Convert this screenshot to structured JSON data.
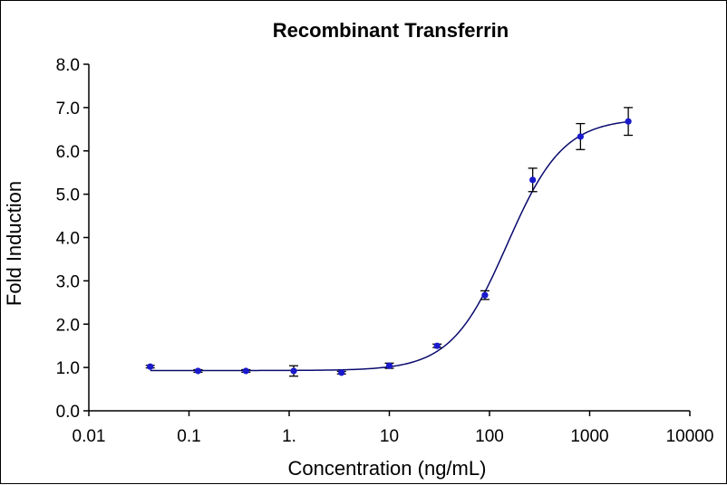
{
  "chart_data": {
    "type": "scatter",
    "title": "Recombinant Transferrin",
    "xlabel": "Concentration (ng/mL)",
    "ylabel": "Fold Induction",
    "x_scale": "log",
    "xlim": [
      0.01,
      10000
    ],
    "ylim": [
      0,
      8
    ],
    "x_ticks": [
      0.01,
      0.1,
      1,
      10,
      100,
      1000,
      10000
    ],
    "x_tick_labels": [
      "0.01",
      "0.1",
      "1.",
      "10",
      "100",
      "1000",
      "10000"
    ],
    "y_ticks": [
      0,
      1,
      2,
      3,
      4,
      5,
      6,
      7,
      8
    ],
    "y_tick_labels": [
      "0.0",
      "1.0",
      "2.0",
      "3.0",
      "4.0",
      "5.0",
      "6.0",
      "7.0",
      "8.0"
    ],
    "grid": false,
    "legend": "none",
    "series": [
      {
        "x": [
          0.041,
          0.123,
          0.37,
          1.11,
          3.33,
          10,
          30,
          90,
          270,
          810,
          2430
        ],
        "y": [
          1.02,
          0.92,
          0.92,
          0.92,
          0.88,
          1.04,
          1.5,
          2.67,
          5.33,
          6.33,
          6.68
        ],
        "error": [
          0.03,
          0.03,
          0.03,
          0.12,
          0.03,
          0.06,
          0.04,
          0.1,
          0.27,
          0.3,
          0.32
        ]
      }
    ],
    "fit_curve": {
      "model": "4PL",
      "bottom": 0.93,
      "top": 6.75,
      "ec50": 150,
      "hill": 1.55
    },
    "colors": {
      "points": "#1a1acc",
      "curve": "#0a0a6e",
      "errorbars": "#000000",
      "axes": "#000000"
    }
  }
}
